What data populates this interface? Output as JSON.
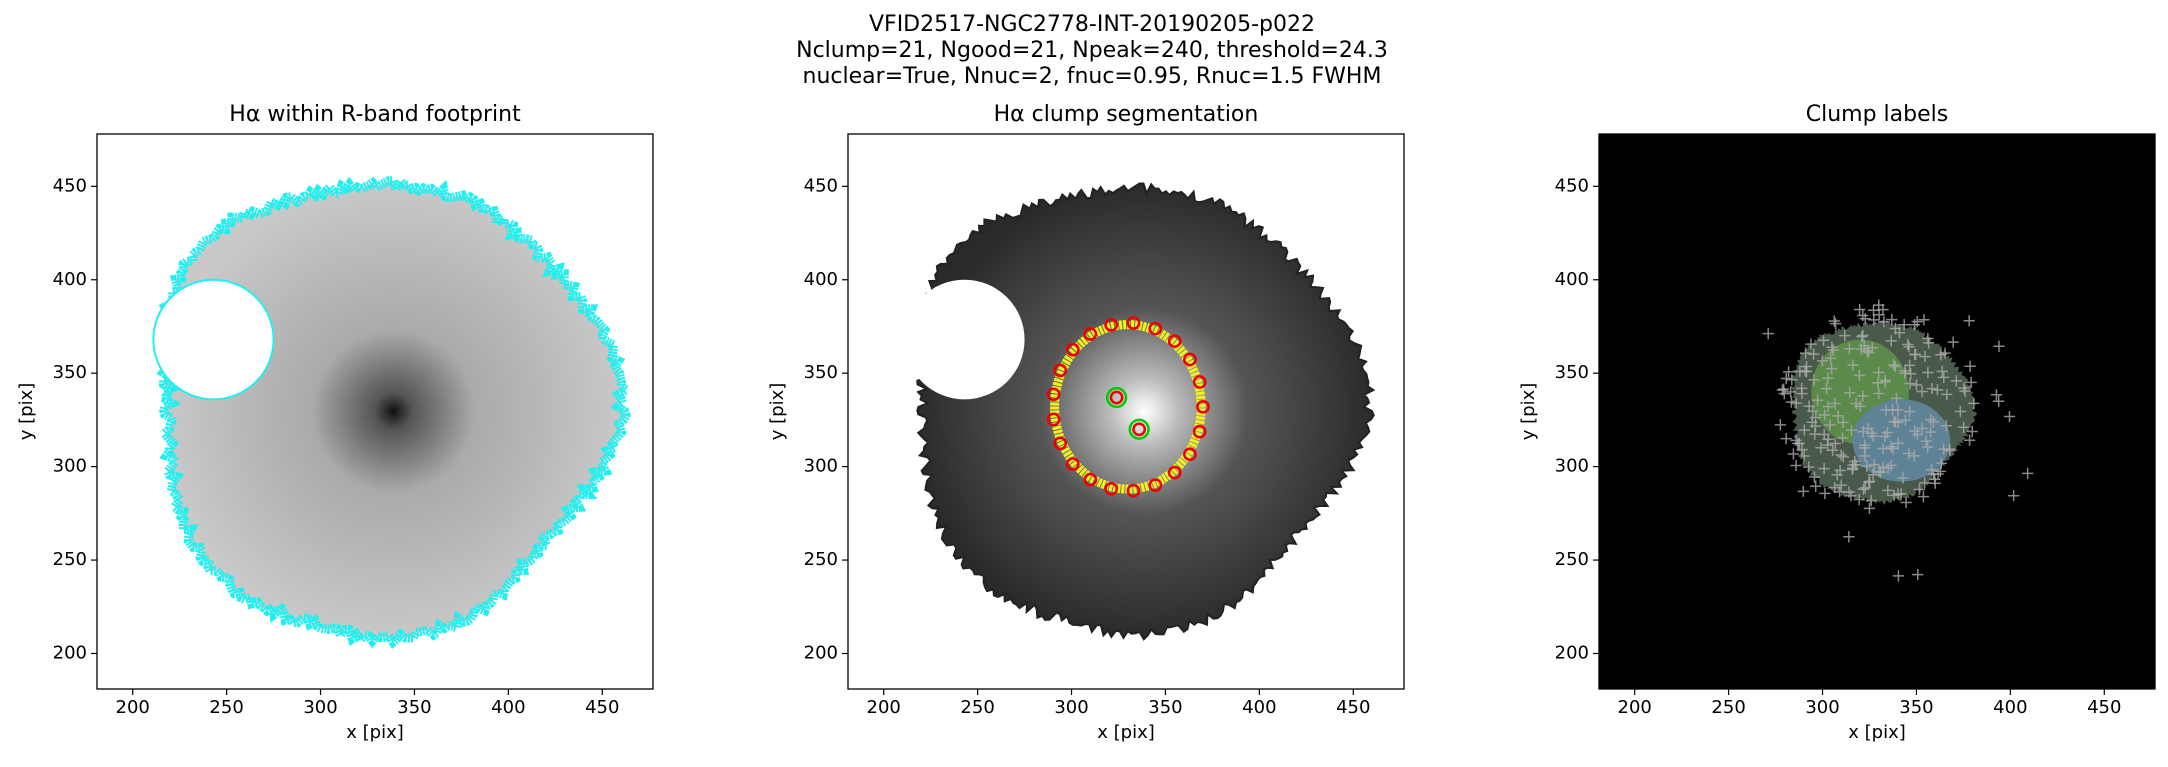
{
  "figure_title": [
    "VFID2517-NGC2778-INT-20190205-p022",
    "Nclump=21, Ngood=21, Npeak=240, threshold=24.3",
    "nuclear=True, Nnuc=2, fnuc=0.95, Rnuc=1.5 FWHM"
  ],
  "chart_data": [
    {
      "type": "image",
      "title": "Hα within R-band footprint",
      "xlabel": "x [pix]",
      "ylabel": "y [pix]",
      "xlim": [
        181,
        477
      ],
      "ylim": [
        181,
        478
      ],
      "xticks": [
        200,
        250,
        300,
        350,
        400,
        450
      ],
      "yticks": [
        200,
        250,
        300,
        350,
        400,
        450
      ]
    },
    {
      "type": "image",
      "title": "Hα clump segmentation",
      "xlabel": "x [pix]",
      "ylabel": "y [pix]",
      "xlim": [
        181,
        477
      ],
      "ylim": [
        181,
        478
      ],
      "xticks": [
        200,
        250,
        300,
        350,
        400,
        450
      ],
      "yticks": [
        200,
        250,
        300,
        350,
        400,
        450
      ]
    },
    {
      "type": "image",
      "title": "Clump labels",
      "xlabel": "x [pix]",
      "ylabel": "y [pix]",
      "xlim": [
        181,
        477
      ],
      "ylim": [
        181,
        478
      ],
      "xticks": [
        200,
        250,
        300,
        350,
        400,
        450
      ],
      "yticks": [
        200,
        250,
        300,
        350,
        400,
        450
      ]
    }
  ]
}
